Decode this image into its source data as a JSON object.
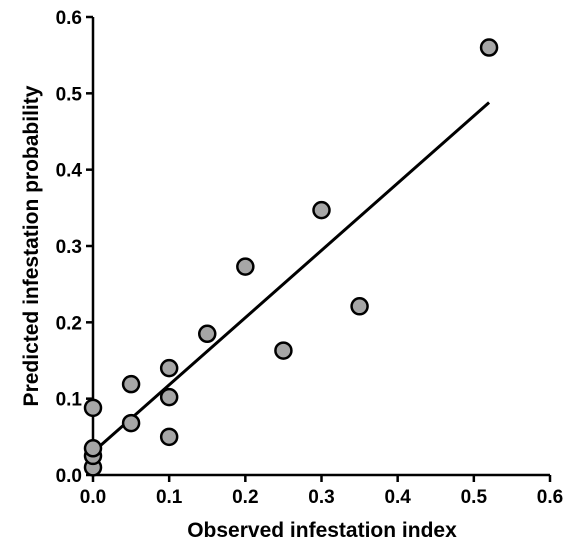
{
  "chart_data": {
    "type": "scatter",
    "xlabel": "Observed infestation index",
    "ylabel": "Predicted infestation probability",
    "xlim": [
      0,
      0.6
    ],
    "ylim": [
      0,
      0.6
    ],
    "x_ticks": [
      "0.0",
      "0.1",
      "0.2",
      "0.3",
      "0.4",
      "0.5",
      "0.6"
    ],
    "y_ticks": [
      "0.0",
      "0.1",
      "0.2",
      "0.3",
      "0.4",
      "0.5",
      "0.6"
    ],
    "grid": false,
    "point_fill": "#a6a6a6",
    "point_stroke": "#000000",
    "points": [
      {
        "x": 0.0,
        "y": 0.01
      },
      {
        "x": 0.0,
        "y": 0.025
      },
      {
        "x": 0.0,
        "y": 0.035
      },
      {
        "x": 0.0,
        "y": 0.088
      },
      {
        "x": 0.05,
        "y": 0.068
      },
      {
        "x": 0.05,
        "y": 0.119
      },
      {
        "x": 0.1,
        "y": 0.05
      },
      {
        "x": 0.1,
        "y": 0.102
      },
      {
        "x": 0.1,
        "y": 0.14
      },
      {
        "x": 0.15,
        "y": 0.185
      },
      {
        "x": 0.2,
        "y": 0.273
      },
      {
        "x": 0.25,
        "y": 0.163
      },
      {
        "x": 0.3,
        "y": 0.347
      },
      {
        "x": 0.35,
        "y": 0.221
      },
      {
        "x": 0.52,
        "y": 0.56
      }
    ],
    "fit_line": {
      "x": [
        0.0,
        0.52
      ],
      "y": [
        0.03,
        0.488
      ]
    }
  }
}
